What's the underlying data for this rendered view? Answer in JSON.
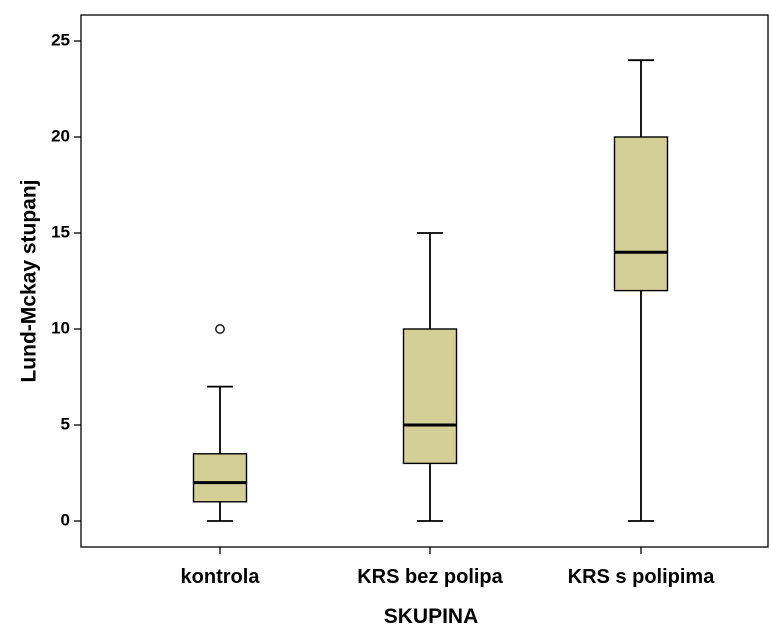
{
  "chart_data": {
    "type": "boxplot",
    "title": "",
    "xlabel": "SKUPINA",
    "ylabel": "Lund-Mckay stupanj",
    "ylim": [
      -1.3,
      26.5
    ],
    "yticks": [
      0,
      5,
      10,
      15,
      20,
      25
    ],
    "grid": false,
    "legend": "none",
    "box_color": "#d4cf97",
    "categories": [
      "kontrola",
      "KRS bez polipa",
      "KRS s polipima"
    ],
    "boxes": [
      {
        "category": "kontrola",
        "min": 0,
        "q1": 1,
        "median": 2,
        "q3": 3.5,
        "max": 7,
        "outliers": [
          10
        ]
      },
      {
        "category": "KRS bez polipa",
        "min": 0,
        "q1": 3,
        "median": 5,
        "q3": 10,
        "max": 15,
        "outliers": []
      },
      {
        "category": "KRS s polipima",
        "min": 0,
        "q1": 12,
        "median": 14,
        "q3": 20,
        "max": 24,
        "outliers": []
      }
    ]
  }
}
